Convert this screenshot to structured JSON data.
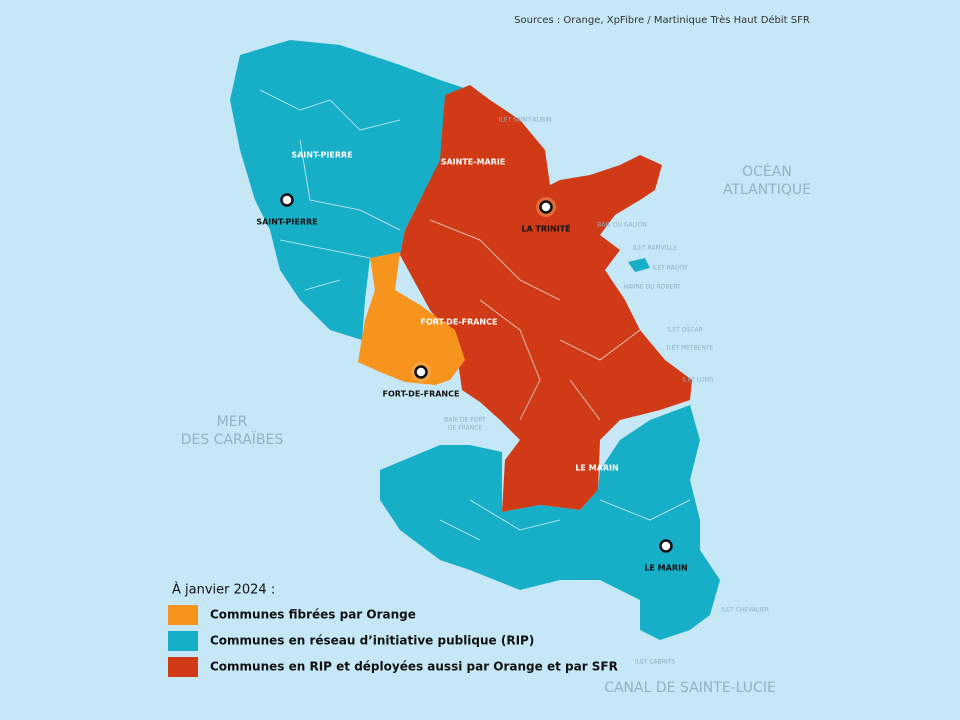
{
  "map": {
    "source": "Sources : Orange, XpFibre / Martinique Très Haut Débit SFR",
    "sea_labels": [
      {
        "lines": [
          "OCÉAN",
          "ATLANTIQUE"
        ]
      },
      {
        "lines": [
          "MER",
          "DES CARAÏBES"
        ]
      },
      {
        "lines": [
          "CANAL DE SAINTE-LUCIE"
        ]
      }
    ],
    "region_labels": [
      "SAINT-PIERRE",
      "SAINTE-MARIE",
      "FORT-DE-FRANCE",
      "LE MARIN"
    ],
    "cities": [
      "SAINT-PIERRE",
      "LA TRINITÉ",
      "FORT-DE-FRANCE",
      "LE MARIN"
    ],
    "places": [
      {
        "lines": [
          "ILET SAINT-AUBIN"
        ]
      },
      {
        "lines": [
          "BAIE DU GALION"
        ]
      },
      {
        "lines": [
          "ILET RAMVILLE"
        ]
      },
      {
        "lines": [
          "ILET RAGOT"
        ]
      },
      {
        "lines": [
          "HAVRE DU ROBERT"
        ]
      },
      {
        "lines": [
          "ILET OSCAR"
        ]
      },
      {
        "lines": [
          "ILET METRENTE"
        ]
      },
      {
        "lines": [
          "ILET LONG"
        ]
      },
      {
        "lines": [
          "BAIE DE FORT",
          "DE FRANCE"
        ]
      },
      {
        "lines": [
          "ILET CHEVALIER"
        ]
      },
      {
        "lines": [
          "ILET CABRITS"
        ]
      }
    ]
  },
  "legend": {
    "title": "À janvier 2024 :",
    "items": [
      {
        "label": "Communes fibrées par Orange",
        "color": "#f7941d"
      },
      {
        "label": "Communes en réseau d’initiative publique (RIP)",
        "color": "#17aec7"
      },
      {
        "label": "Communes en RIP et déployées aussi par Orange et par SFR",
        "color": "#d03a16"
      }
    ]
  }
}
